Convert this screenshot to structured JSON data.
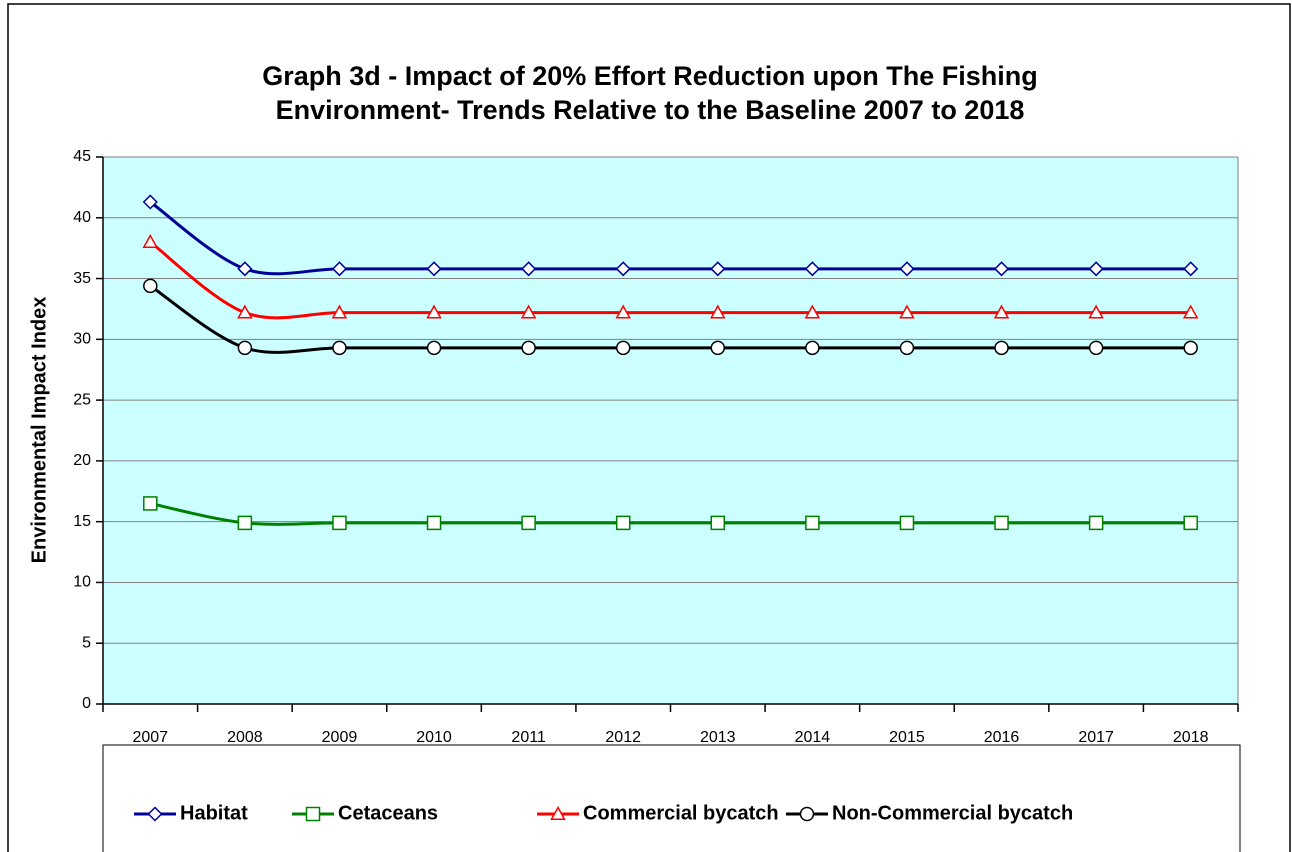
{
  "chart_data": {
    "type": "line",
    "title": [
      "Graph 3d - Impact of 20% Effort Reduction upon The Fishing",
      "Environment- Trends Relative to the Baseline 2007 to 2018"
    ],
    "y_label": "Environmental Impact Index",
    "categories": [
      "2007",
      "2008",
      "2009",
      "2010",
      "2011",
      "2012",
      "2013",
      "2014",
      "2015",
      "2016",
      "2017",
      "2018"
    ],
    "series": [
      {
        "name": "Habitat",
        "color": "#000099",
        "marker": "diamond",
        "values": [
          41.3,
          35.8,
          35.8,
          35.8,
          35.8,
          35.8,
          35.8,
          35.8,
          35.8,
          35.8,
          35.8,
          35.8
        ]
      },
      {
        "name": "Cetaceans",
        "color": "#008000",
        "marker": "square",
        "values": [
          16.5,
          14.9,
          14.9,
          14.9,
          14.9,
          14.9,
          14.9,
          14.9,
          14.9,
          14.9,
          14.9,
          14.9
        ]
      },
      {
        "name": "Commercial bycatch",
        "color": "#ff0000",
        "marker": "triangle",
        "values": [
          38.0,
          32.2,
          32.2,
          32.2,
          32.2,
          32.2,
          32.2,
          32.2,
          32.2,
          32.2,
          32.2,
          32.2
        ]
      },
      {
        "name": "Non-Commercial bycatch",
        "color": "#000000",
        "marker": "circle",
        "values": [
          34.4,
          29.3,
          29.3,
          29.3,
          29.3,
          29.3,
          29.3,
          29.3,
          29.3,
          29.3,
          29.3,
          29.3
        ]
      }
    ],
    "ylim": [
      0,
      45
    ],
    "yticks": [
      0,
      5,
      10,
      15,
      20,
      25,
      30,
      35,
      40,
      45
    ],
    "grid": true,
    "legend": "bottom",
    "smooth": true
  }
}
